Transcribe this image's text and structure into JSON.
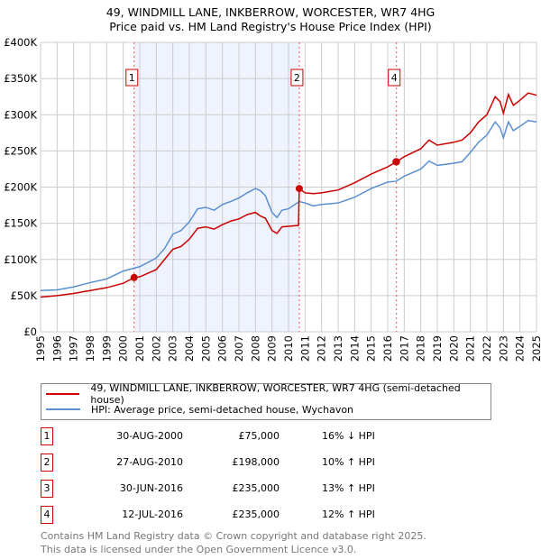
{
  "title": "49, WINDMILL LANE, INKBERROW, WORCESTER, WR7 4HG",
  "subtitle": "Price paid vs. HM Land Registry's House Price Index (HPI)",
  "chart_data": {
    "type": "line",
    "ylim": [
      0,
      400000
    ],
    "xlim": [
      1995,
      2025
    ],
    "yticks": [
      {
        "v": 0,
        "label": "£0"
      },
      {
        "v": 50000,
        "label": "£50K"
      },
      {
        "v": 100000,
        "label": "£100K"
      },
      {
        "v": 150000,
        "label": "£150K"
      },
      {
        "v": 200000,
        "label": "£200K"
      },
      {
        "v": 250000,
        "label": "£250K"
      },
      {
        "v": 300000,
        "label": "£300K"
      },
      {
        "v": 350000,
        "label": "£350K"
      },
      {
        "v": 400000,
        "label": "£400K"
      }
    ],
    "xticks": [
      "1995",
      "1996",
      "1997",
      "1998",
      "1999",
      "2000",
      "2001",
      "2002",
      "2003",
      "2004",
      "2005",
      "2006",
      "2007",
      "2008",
      "2009",
      "2010",
      "2011",
      "2012",
      "2013",
      "2014",
      "2015",
      "2016",
      "2017",
      "2018",
      "2019",
      "2020",
      "2021",
      "2022",
      "2023",
      "2024",
      "2025"
    ],
    "shaded_range": [
      2000.66,
      2010.65
    ],
    "series": [
      {
        "name": "49, WINDMILL LANE, INKBERROW, WORCESTER, WR7 4HG (semi-detached house)",
        "color": "#cc0000",
        "x": [
          1995,
          1996,
          1997,
          1998,
          1999,
          2000,
          2000.66,
          2001,
          2002,
          2002.5,
          2003,
          2003.5,
          2004,
          2004.5,
          2005,
          2005.5,
          2006,
          2006.5,
          2007,
          2007.5,
          2008,
          2008.3,
          2008.6,
          2009,
          2009.3,
          2009.6,
          2010.6,
          2010.65,
          2011,
          2011.5,
          2012,
          2013,
          2014,
          2015,
          2016,
          2016.53,
          2017,
          2018,
          2018.5,
          2019,
          2020,
          2020.5,
          2021,
          2021.5,
          2022,
          2022.5,
          2022.8,
          2023,
          2023.3,
          2023.6,
          2024,
          2024.5,
          2025
        ],
        "y": [
          48000,
          50000,
          53000,
          57000,
          61000,
          67000,
          75000,
          76000,
          86000,
          100000,
          114000,
          118000,
          128000,
          143000,
          145000,
          142000,
          148000,
          153000,
          156000,
          162000,
          165000,
          160000,
          157000,
          140000,
          136000,
          145000,
          147000,
          198000,
          192000,
          191000,
          192000,
          196000,
          206000,
          218000,
          228000,
          235000,
          242000,
          253000,
          265000,
          258000,
          262000,
          265000,
          275000,
          290000,
          300000,
          325000,
          318000,
          302000,
          328000,
          313000,
          320000,
          330000,
          327000
        ]
      },
      {
        "name": "HPI: Average price, semi-detached house, Wychavon",
        "color": "#5b8fd0",
        "x": [
          1995,
          1996,
          1997,
          1998,
          1999,
          2000,
          2000.66,
          2001,
          2002,
          2002.5,
          2003,
          2003.5,
          2004,
          2004.5,
          2005,
          2005.5,
          2006,
          2006.5,
          2007,
          2007.5,
          2008,
          2008.3,
          2008.6,
          2009,
          2009.3,
          2009.6,
          2010,
          2010.65,
          2011,
          2011.5,
          2012,
          2013,
          2014,
          2015,
          2016,
          2016.5,
          2017,
          2018,
          2018.5,
          2019,
          2020,
          2020.5,
          2021,
          2021.5,
          2022,
          2022.5,
          2022.8,
          2023,
          2023.3,
          2023.6,
          2024,
          2024.5,
          2025
        ],
        "y": [
          57000,
          58000,
          62000,
          68000,
          73000,
          84000,
          88000,
          90000,
          102000,
          115000,
          135000,
          140000,
          152000,
          170000,
          172000,
          168000,
          176000,
          180000,
          185000,
          192000,
          198000,
          195000,
          188000,
          165000,
          158000,
          168000,
          170000,
          180000,
          178000,
          174000,
          176000,
          178000,
          186000,
          198000,
          207000,
          208000,
          215000,
          225000,
          236000,
          230000,
          233000,
          235000,
          248000,
          262000,
          272000,
          290000,
          282000,
          268000,
          290000,
          278000,
          284000,
          292000,
          290000
        ]
      }
    ],
    "markers": [
      {
        "label": "1",
        "x": 2000.66,
        "y": 75000
      },
      {
        "label": "2",
        "x": 2010.65,
        "y": 198000
      },
      {
        "label": "4",
        "x": 2016.53,
        "y": 235000
      }
    ],
    "marker_points": [
      {
        "x": 2000.66,
        "y": 75000
      },
      {
        "x": 2010.65,
        "y": 198000
      },
      {
        "x": 2016.5,
        "y": 235000
      },
      {
        "x": 2016.53,
        "y": 235000
      }
    ]
  },
  "legend": {
    "property": "49, WINDMILL LANE, INKBERROW, WORCESTER, WR7 4HG (semi-detached house)",
    "hpi": "HPI: Average price, semi-detached house, Wychavon"
  },
  "transactions": [
    {
      "num": "1",
      "date": "30-AUG-2000",
      "price": "£75,000",
      "hpi": "16% ↓ HPI"
    },
    {
      "num": "2",
      "date": "27-AUG-2010",
      "price": "£198,000",
      "hpi": "10% ↑ HPI"
    },
    {
      "num": "3",
      "date": "30-JUN-2016",
      "price": "£235,000",
      "hpi": "13% ↑ HPI"
    },
    {
      "num": "4",
      "date": "12-JUL-2016",
      "price": "£235,000",
      "hpi": "12% ↑ HPI"
    }
  ],
  "footer": {
    "line1": "Contains HM Land Registry data © Crown copyright and database right 2025.",
    "line2": "This data is licensed under the Open Government Licence v3.0."
  }
}
